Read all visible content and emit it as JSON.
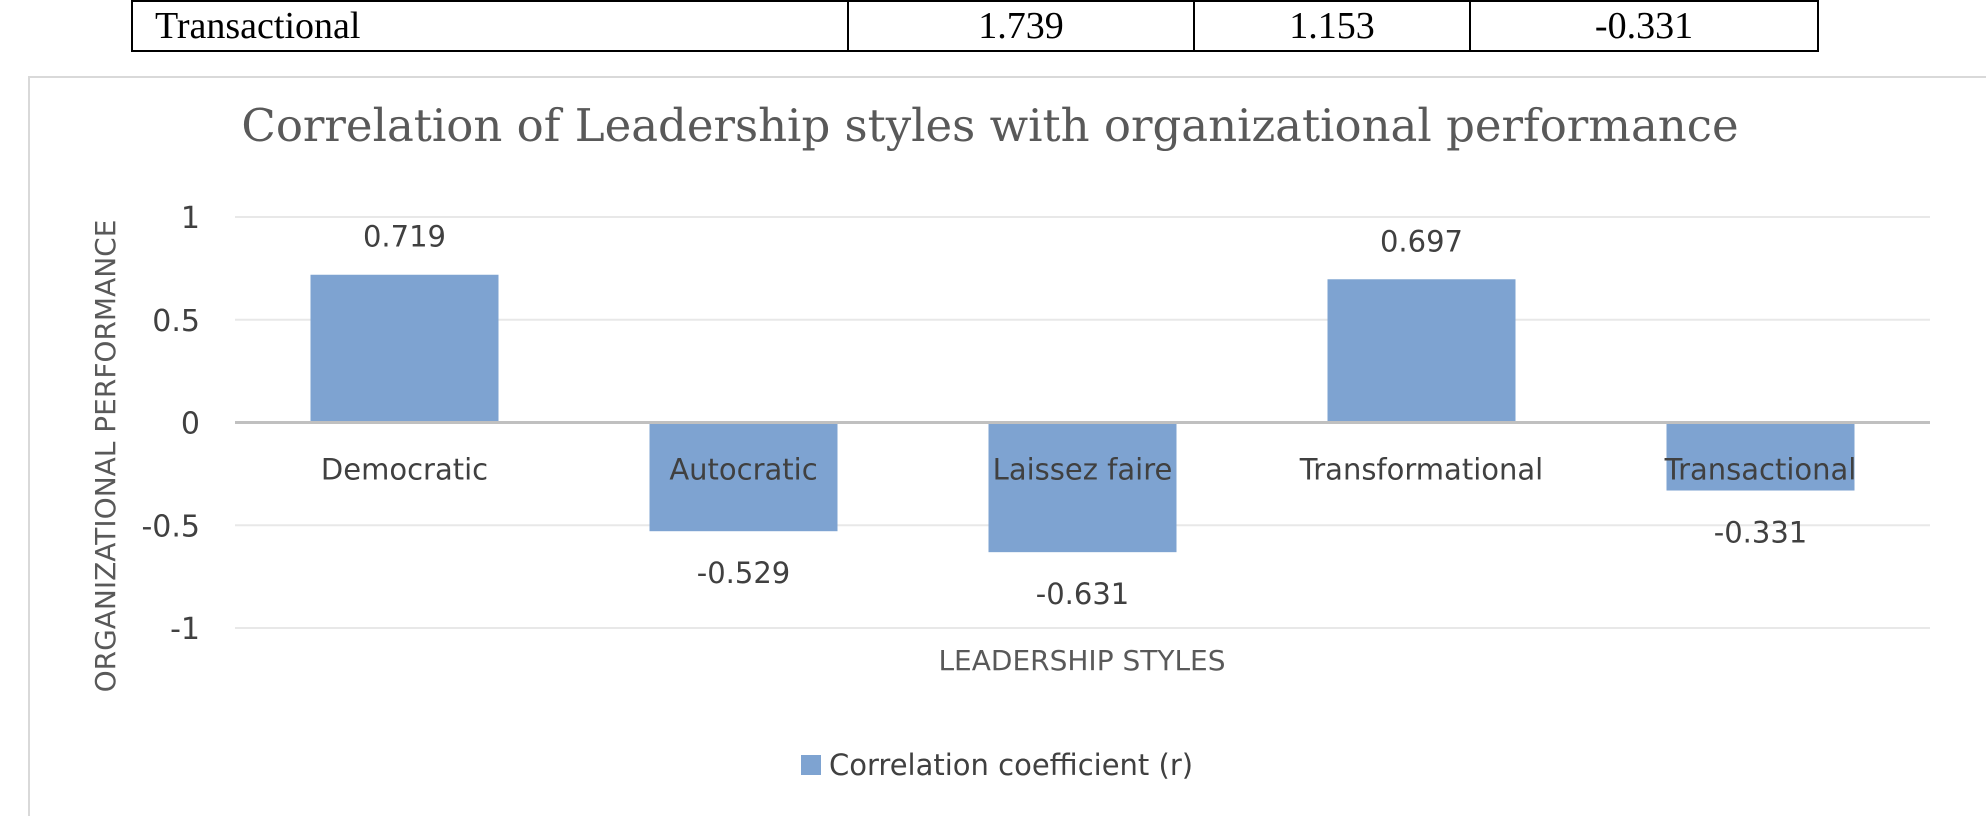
{
  "table": {
    "row": {
      "label": "Transactional",
      "values": [
        "1.739",
        "1.153",
        "-0.331"
      ]
    }
  },
  "chart_data": {
    "type": "bar",
    "title": "Correlation of Leadership styles with organizational performance",
    "xlabel": "LEADERSHIP STYLES",
    "ylabel": "ORGANIZATIONAL PERFORMANCE",
    "categories": [
      "Democratic",
      "Autocratic",
      "Laissez faire",
      "Transformational",
      "Transactional"
    ],
    "series": [
      {
        "name": "Correlation coefficient (r)",
        "values": [
          0.719,
          -0.529,
          -0.631,
          0.697,
          -0.331
        ],
        "data_labels": [
          "0.719",
          "-0.529",
          "-0.631",
          "0.697",
          "-0.331"
        ]
      }
    ],
    "yticks": [
      "1",
      "0.5",
      "0",
      "-0.5",
      "-1"
    ],
    "ylim": [
      -1,
      1
    ],
    "grid": true,
    "legend_position": "bottom",
    "colors": {
      "bar": "#7ea3d1",
      "grid": "#e8e8e8",
      "axis": "#c0c0c0",
      "text": "#404040",
      "title": "#595959"
    }
  }
}
